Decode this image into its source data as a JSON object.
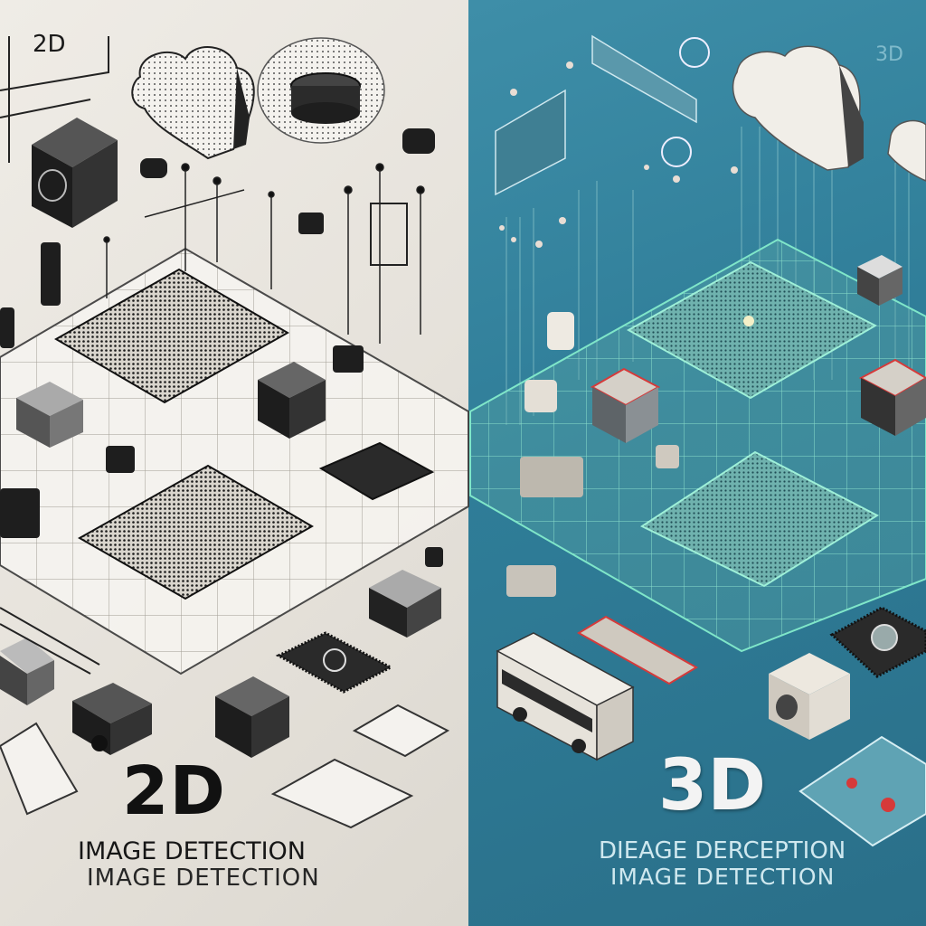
{
  "left": {
    "corner_label": "2D",
    "title": "2D",
    "caption_line1": "IMAGE DETECTION",
    "caption_line2": "IMAGE DETECTION",
    "bg_color": "#e9e6e0",
    "ink_color": "#1a1a1a"
  },
  "right": {
    "corner_label": "3D",
    "title": "3D",
    "caption_line1": "DIEAGE DERCEPTION",
    "caption_line2": "IMAGE DETECTION",
    "bg_color": "#2f7d98",
    "glow_color": "#7fe6c9",
    "accent_color": "#d63a3a"
  }
}
